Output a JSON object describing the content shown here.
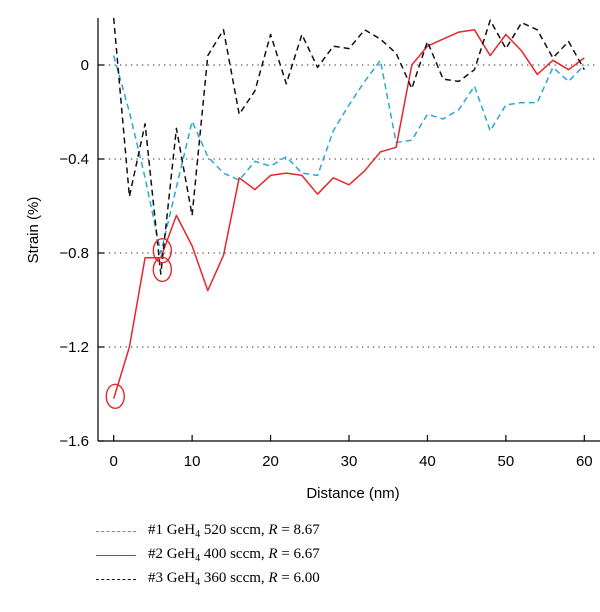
{
  "chart_data": {
    "type": "line",
    "title": "",
    "xlabel": "Distance (nm)",
    "ylabel": "Strain (%)",
    "xlim": [
      -2,
      62
    ],
    "ylim": [
      -1.6,
      0.2
    ],
    "x_ticks": [
      0,
      10,
      20,
      30,
      40,
      50,
      60
    ],
    "y_ticks": [
      0,
      -0.4,
      -0.8,
      -1.2,
      -1.6
    ],
    "x_tick_labels": [
      "0",
      "10",
      "20",
      "30",
      "40",
      "50",
      "60"
    ],
    "y_tick_labels": [
      "0",
      "−0.4",
      "−0.8",
      "−1.2",
      "−1.6"
    ],
    "grid": "dotted horizontal",
    "legend_position": "bottom",
    "series": [
      {
        "name": "#1 GeH4 520 sccm, R = 8.67",
        "legend_main": "#1 GeH",
        "legend_sub": "4",
        "legend_mid": " 520 sccm, ",
        "legend_var": "R",
        "legend_val": " = 8.67",
        "color": "#29a8d8",
        "dash": "dashed",
        "x": [
          0,
          2,
          4,
          6,
          8,
          10,
          12,
          14,
          16,
          18,
          20,
          22,
          24,
          26,
          28,
          30,
          32,
          34,
          36,
          38,
          40,
          42,
          44,
          46,
          48,
          50,
          52,
          54,
          56,
          58,
          60
        ],
        "y": [
          0.04,
          -0.2,
          -0.48,
          -0.8,
          -0.52,
          -0.24,
          -0.39,
          -0.46,
          -0.49,
          -0.41,
          -0.43,
          -0.39,
          -0.46,
          -0.47,
          -0.28,
          -0.17,
          -0.07,
          0.02,
          -0.33,
          -0.32,
          -0.21,
          -0.23,
          -0.19,
          -0.09,
          -0.28,
          -0.17,
          -0.16,
          -0.16,
          -0.01,
          -0.07,
          0.0
        ]
      },
      {
        "name": "#2 GeH4 400 sccm, R = 6.67",
        "legend_main": "#2 GeH",
        "legend_sub": "4",
        "legend_mid": " 400 sccm, ",
        "legend_var": "R",
        "legend_val": " = 6.67",
        "color": "#e8252a",
        "dash": "solid",
        "x": [
          0,
          2,
          4,
          6,
          8,
          10,
          12,
          14,
          16,
          18,
          20,
          22,
          24,
          26,
          28,
          30,
          32,
          34,
          36,
          38,
          40,
          42,
          44,
          46,
          48,
          50,
          52,
          54,
          56,
          58,
          60
        ],
        "y": [
          -1.42,
          -1.2,
          -0.82,
          -0.82,
          -0.64,
          -0.77,
          -0.96,
          -0.81,
          -0.48,
          -0.53,
          -0.47,
          -0.46,
          -0.47,
          -0.55,
          -0.48,
          -0.51,
          -0.45,
          -0.37,
          -0.35,
          0.0,
          0.08,
          0.11,
          0.14,
          0.15,
          0.04,
          0.13,
          0.06,
          -0.04,
          0.02,
          -0.02,
          0.03
        ]
      },
      {
        "name": "#3 GeH4 360 sccm, R = 6.00",
        "legend_main": "#3 GeH",
        "legend_sub": "4",
        "legend_mid": " 360 sccm, ",
        "legend_var": "R",
        "legend_val": " = 6.00",
        "color": "#111111",
        "dash": "dashed",
        "x": [
          0,
          2,
          4,
          6,
          8,
          10,
          12,
          14,
          16,
          18,
          20,
          22,
          24,
          26,
          28,
          30,
          32,
          34,
          36,
          38,
          40,
          42,
          44,
          46,
          48,
          50,
          52,
          54,
          56,
          58,
          60
        ],
        "y": [
          0.2,
          -0.56,
          -0.25,
          -0.89,
          -0.27,
          -0.64,
          0.04,
          0.15,
          -0.21,
          -0.11,
          0.13,
          -0.08,
          0.13,
          -0.01,
          0.08,
          0.07,
          0.15,
          0.11,
          0.05,
          -0.1,
          0.1,
          -0.06,
          -0.07,
          -0.02,
          0.19,
          0.07,
          0.18,
          0.15,
          0.03,
          0.1,
          -0.02
        ]
      }
    ],
    "annotations": [
      {
        "type": "circle",
        "x": 0.2,
        "y": -1.41,
        "color": "#e8252a"
      },
      {
        "type": "circle",
        "x": 6.2,
        "y": -0.87,
        "color": "#e8252a"
      },
      {
        "type": "circle",
        "x": 6.2,
        "y": -0.79,
        "color": "#e8252a"
      }
    ]
  }
}
